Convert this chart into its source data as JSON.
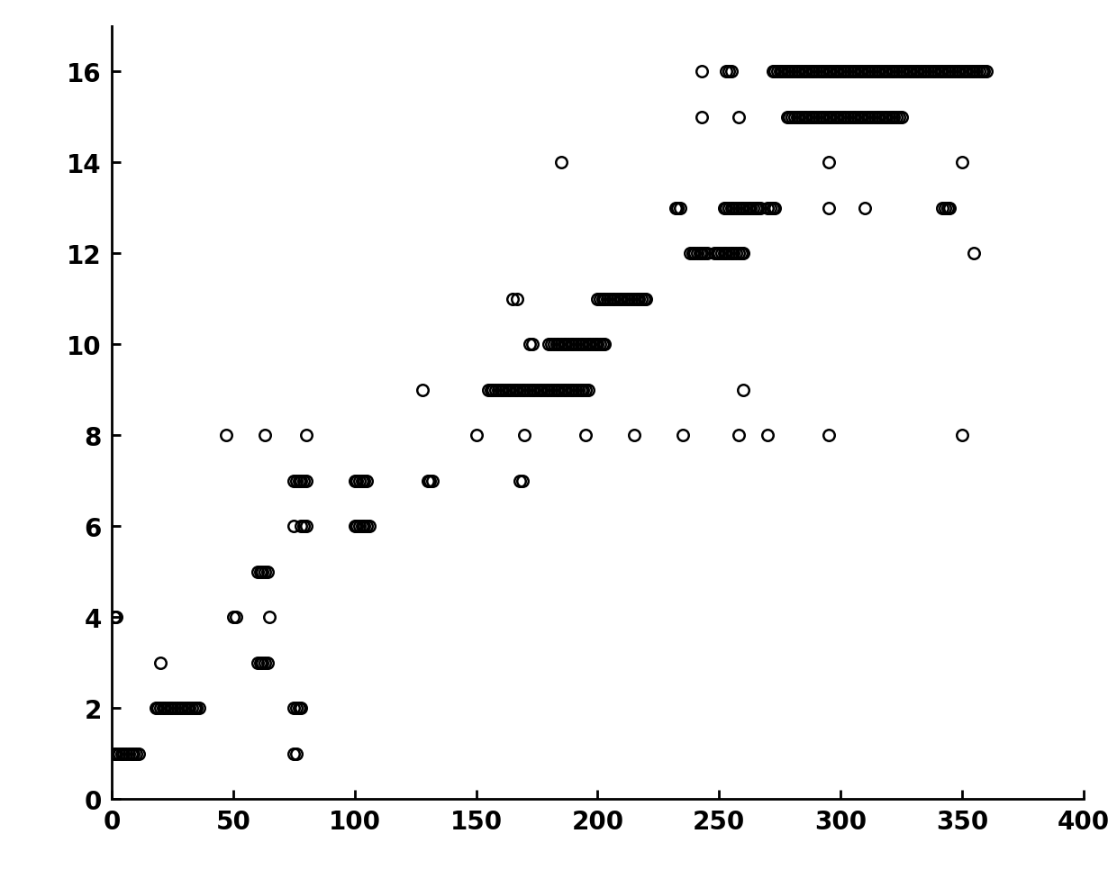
{
  "title": "",
  "xlim": [
    0,
    400
  ],
  "ylim": [
    0,
    17
  ],
  "xticks": [
    0,
    50,
    100,
    150,
    200,
    250,
    300,
    350,
    400
  ],
  "yticks": [
    0,
    2,
    4,
    6,
    8,
    10,
    12,
    14,
    16
  ],
  "marker": "o",
  "markersize": 9,
  "markerfacecolor": "none",
  "markeredgecolor": "black",
  "markeredgewidth": 1.8,
  "background_color": "#ffffff",
  "points": [
    [
      1,
      1
    ],
    [
      2,
      1
    ],
    [
      3,
      1
    ],
    [
      4,
      1
    ],
    [
      5,
      1
    ],
    [
      6,
      1
    ],
    [
      7,
      1
    ],
    [
      8,
      1
    ],
    [
      9,
      1
    ],
    [
      10,
      1
    ],
    [
      11,
      1
    ],
    [
      75,
      1
    ],
    [
      76,
      1
    ],
    [
      18,
      2
    ],
    [
      19,
      2
    ],
    [
      20,
      2
    ],
    [
      21,
      2
    ],
    [
      22,
      2
    ],
    [
      23,
      2
    ],
    [
      24,
      2
    ],
    [
      25,
      2
    ],
    [
      26,
      2
    ],
    [
      27,
      2
    ],
    [
      28,
      2
    ],
    [
      29,
      2
    ],
    [
      30,
      2
    ],
    [
      31,
      2
    ],
    [
      32,
      2
    ],
    [
      33,
      2
    ],
    [
      34,
      2
    ],
    [
      35,
      2
    ],
    [
      36,
      2
    ],
    [
      75,
      2
    ],
    [
      76,
      2
    ],
    [
      77,
      2
    ],
    [
      78,
      2
    ],
    [
      20,
      3
    ],
    [
      60,
      3
    ],
    [
      61,
      3
    ],
    [
      62,
      3
    ],
    [
      63,
      3
    ],
    [
      64,
      3
    ],
    [
      1,
      4
    ],
    [
      2,
      4
    ],
    [
      50,
      4
    ],
    [
      51,
      4
    ],
    [
      65,
      4
    ],
    [
      60,
      5
    ],
    [
      61,
      5
    ],
    [
      62,
      5
    ],
    [
      63,
      5
    ],
    [
      64,
      5
    ],
    [
      75,
      6
    ],
    [
      78,
      6
    ],
    [
      79,
      6
    ],
    [
      80,
      6
    ],
    [
      100,
      6
    ],
    [
      101,
      6
    ],
    [
      102,
      6
    ],
    [
      103,
      6
    ],
    [
      104,
      6
    ],
    [
      105,
      6
    ],
    [
      106,
      6
    ],
    [
      75,
      7
    ],
    [
      76,
      7
    ],
    [
      77,
      7
    ],
    [
      78,
      7
    ],
    [
      79,
      7
    ],
    [
      80,
      7
    ],
    [
      100,
      7
    ],
    [
      101,
      7
    ],
    [
      102,
      7
    ],
    [
      103,
      7
    ],
    [
      104,
      7
    ],
    [
      105,
      7
    ],
    [
      130,
      7
    ],
    [
      131,
      7
    ],
    [
      132,
      7
    ],
    [
      168,
      7
    ],
    [
      169,
      7
    ],
    [
      47,
      8
    ],
    [
      63,
      8
    ],
    [
      80,
      8
    ],
    [
      150,
      8
    ],
    [
      170,
      8
    ],
    [
      195,
      8
    ],
    [
      215,
      8
    ],
    [
      235,
      8
    ],
    [
      258,
      8
    ],
    [
      270,
      8
    ],
    [
      295,
      8
    ],
    [
      350,
      8
    ],
    [
      128,
      9
    ],
    [
      155,
      9
    ],
    [
      156,
      9
    ],
    [
      157,
      9
    ],
    [
      158,
      9
    ],
    [
      159,
      9
    ],
    [
      160,
      9
    ],
    [
      161,
      9
    ],
    [
      162,
      9
    ],
    [
      163,
      9
    ],
    [
      164,
      9
    ],
    [
      165,
      9
    ],
    [
      166,
      9
    ],
    [
      167,
      9
    ],
    [
      168,
      9
    ],
    [
      169,
      9
    ],
    [
      170,
      9
    ],
    [
      171,
      9
    ],
    [
      172,
      9
    ],
    [
      173,
      9
    ],
    [
      174,
      9
    ],
    [
      175,
      9
    ],
    [
      176,
      9
    ],
    [
      177,
      9
    ],
    [
      178,
      9
    ],
    [
      179,
      9
    ],
    [
      180,
      9
    ],
    [
      181,
      9
    ],
    [
      182,
      9
    ],
    [
      183,
      9
    ],
    [
      184,
      9
    ],
    [
      185,
      9
    ],
    [
      186,
      9
    ],
    [
      187,
      9
    ],
    [
      188,
      9
    ],
    [
      189,
      9
    ],
    [
      190,
      9
    ],
    [
      191,
      9
    ],
    [
      192,
      9
    ],
    [
      193,
      9
    ],
    [
      194,
      9
    ],
    [
      195,
      9
    ],
    [
      196,
      9
    ],
    [
      260,
      9
    ],
    [
      172,
      10
    ],
    [
      173,
      10
    ],
    [
      180,
      10
    ],
    [
      181,
      10
    ],
    [
      182,
      10
    ],
    [
      183,
      10
    ],
    [
      184,
      10
    ],
    [
      185,
      10
    ],
    [
      186,
      10
    ],
    [
      187,
      10
    ],
    [
      188,
      10
    ],
    [
      189,
      10
    ],
    [
      190,
      10
    ],
    [
      191,
      10
    ],
    [
      192,
      10
    ],
    [
      193,
      10
    ],
    [
      194,
      10
    ],
    [
      195,
      10
    ],
    [
      196,
      10
    ],
    [
      197,
      10
    ],
    [
      198,
      10
    ],
    [
      199,
      10
    ],
    [
      200,
      10
    ],
    [
      201,
      10
    ],
    [
      202,
      10
    ],
    [
      203,
      10
    ],
    [
      165,
      11
    ],
    [
      167,
      11
    ],
    [
      200,
      11
    ],
    [
      201,
      11
    ],
    [
      202,
      11
    ],
    [
      203,
      11
    ],
    [
      204,
      11
    ],
    [
      205,
      11
    ],
    [
      206,
      11
    ],
    [
      207,
      11
    ],
    [
      208,
      11
    ],
    [
      209,
      11
    ],
    [
      210,
      11
    ],
    [
      211,
      11
    ],
    [
      212,
      11
    ],
    [
      213,
      11
    ],
    [
      214,
      11
    ],
    [
      215,
      11
    ],
    [
      216,
      11
    ],
    [
      217,
      11
    ],
    [
      218,
      11
    ],
    [
      219,
      11
    ],
    [
      220,
      11
    ],
    [
      238,
      12
    ],
    [
      239,
      12
    ],
    [
      240,
      12
    ],
    [
      241,
      12
    ],
    [
      242,
      12
    ],
    [
      243,
      12
    ],
    [
      244,
      12
    ],
    [
      245,
      12
    ],
    [
      248,
      12
    ],
    [
      249,
      12
    ],
    [
      250,
      12
    ],
    [
      251,
      12
    ],
    [
      252,
      12
    ],
    [
      253,
      12
    ],
    [
      254,
      12
    ],
    [
      255,
      12
    ],
    [
      256,
      12
    ],
    [
      257,
      12
    ],
    [
      258,
      12
    ],
    [
      259,
      12
    ],
    [
      260,
      12
    ],
    [
      355,
      12
    ],
    [
      232,
      13
    ],
    [
      233,
      13
    ],
    [
      234,
      13
    ],
    [
      252,
      13
    ],
    [
      253,
      13
    ],
    [
      254,
      13
    ],
    [
      255,
      13
    ],
    [
      256,
      13
    ],
    [
      257,
      13
    ],
    [
      258,
      13
    ],
    [
      259,
      13
    ],
    [
      260,
      13
    ],
    [
      261,
      13
    ],
    [
      262,
      13
    ],
    [
      263,
      13
    ],
    [
      264,
      13
    ],
    [
      265,
      13
    ],
    [
      266,
      13
    ],
    [
      267,
      13
    ],
    [
      270,
      13
    ],
    [
      271,
      13
    ],
    [
      272,
      13
    ],
    [
      273,
      13
    ],
    [
      295,
      13
    ],
    [
      310,
      13
    ],
    [
      342,
      13
    ],
    [
      343,
      13
    ],
    [
      344,
      13
    ],
    [
      345,
      13
    ],
    [
      185,
      14
    ],
    [
      295,
      14
    ],
    [
      350,
      14
    ],
    [
      243,
      15
    ],
    [
      258,
      15
    ],
    [
      278,
      15
    ],
    [
      279,
      15
    ],
    [
      280,
      15
    ],
    [
      281,
      15
    ],
    [
      282,
      15
    ],
    [
      283,
      15
    ],
    [
      284,
      15
    ],
    [
      285,
      15
    ],
    [
      286,
      15
    ],
    [
      287,
      15
    ],
    [
      288,
      15
    ],
    [
      289,
      15
    ],
    [
      290,
      15
    ],
    [
      291,
      15
    ],
    [
      292,
      15
    ],
    [
      293,
      15
    ],
    [
      294,
      15
    ],
    [
      295,
      15
    ],
    [
      296,
      15
    ],
    [
      297,
      15
    ],
    [
      298,
      15
    ],
    [
      299,
      15
    ],
    [
      300,
      15
    ],
    [
      301,
      15
    ],
    [
      302,
      15
    ],
    [
      303,
      15
    ],
    [
      304,
      15
    ],
    [
      305,
      15
    ],
    [
      306,
      15
    ],
    [
      307,
      15
    ],
    [
      308,
      15
    ],
    [
      309,
      15
    ],
    [
      310,
      15
    ],
    [
      311,
      15
    ],
    [
      312,
      15
    ],
    [
      313,
      15
    ],
    [
      314,
      15
    ],
    [
      315,
      15
    ],
    [
      316,
      15
    ],
    [
      317,
      15
    ],
    [
      318,
      15
    ],
    [
      319,
      15
    ],
    [
      320,
      15
    ],
    [
      321,
      15
    ],
    [
      322,
      15
    ],
    [
      323,
      15
    ],
    [
      324,
      15
    ],
    [
      325,
      15
    ],
    [
      243,
      16
    ],
    [
      253,
      16
    ],
    [
      254,
      16
    ],
    [
      255,
      16
    ],
    [
      272,
      16
    ],
    [
      273,
      16
    ],
    [
      274,
      16
    ],
    [
      275,
      16
    ],
    [
      276,
      16
    ],
    [
      277,
      16
    ],
    [
      278,
      16
    ],
    [
      279,
      16
    ],
    [
      280,
      16
    ],
    [
      281,
      16
    ],
    [
      282,
      16
    ],
    [
      283,
      16
    ],
    [
      284,
      16
    ],
    [
      285,
      16
    ],
    [
      286,
      16
    ],
    [
      287,
      16
    ],
    [
      288,
      16
    ],
    [
      289,
      16
    ],
    [
      290,
      16
    ],
    [
      291,
      16
    ],
    [
      292,
      16
    ],
    [
      293,
      16
    ],
    [
      294,
      16
    ],
    [
      295,
      16
    ],
    [
      296,
      16
    ],
    [
      297,
      16
    ],
    [
      298,
      16
    ],
    [
      299,
      16
    ],
    [
      300,
      16
    ],
    [
      301,
      16
    ],
    [
      302,
      16
    ],
    [
      303,
      16
    ],
    [
      304,
      16
    ],
    [
      305,
      16
    ],
    [
      306,
      16
    ],
    [
      307,
      16
    ],
    [
      308,
      16
    ],
    [
      309,
      16
    ],
    [
      310,
      16
    ],
    [
      311,
      16
    ],
    [
      312,
      16
    ],
    [
      313,
      16
    ],
    [
      314,
      16
    ],
    [
      315,
      16
    ],
    [
      316,
      16
    ],
    [
      317,
      16
    ],
    [
      318,
      16
    ],
    [
      319,
      16
    ],
    [
      320,
      16
    ],
    [
      321,
      16
    ],
    [
      322,
      16
    ],
    [
      323,
      16
    ],
    [
      324,
      16
    ],
    [
      325,
      16
    ],
    [
      326,
      16
    ],
    [
      327,
      16
    ],
    [
      328,
      16
    ],
    [
      329,
      16
    ],
    [
      330,
      16
    ],
    [
      331,
      16
    ],
    [
      332,
      16
    ],
    [
      333,
      16
    ],
    [
      334,
      16
    ],
    [
      335,
      16
    ],
    [
      336,
      16
    ],
    [
      337,
      16
    ],
    [
      338,
      16
    ],
    [
      339,
      16
    ],
    [
      340,
      16
    ],
    [
      341,
      16
    ],
    [
      342,
      16
    ],
    [
      343,
      16
    ],
    [
      344,
      16
    ],
    [
      345,
      16
    ],
    [
      346,
      16
    ],
    [
      347,
      16
    ],
    [
      348,
      16
    ],
    [
      349,
      16
    ],
    [
      350,
      16
    ],
    [
      351,
      16
    ],
    [
      352,
      16
    ],
    [
      353,
      16
    ],
    [
      354,
      16
    ],
    [
      355,
      16
    ],
    [
      356,
      16
    ],
    [
      357,
      16
    ],
    [
      358,
      16
    ],
    [
      359,
      16
    ],
    [
      360,
      16
    ]
  ]
}
